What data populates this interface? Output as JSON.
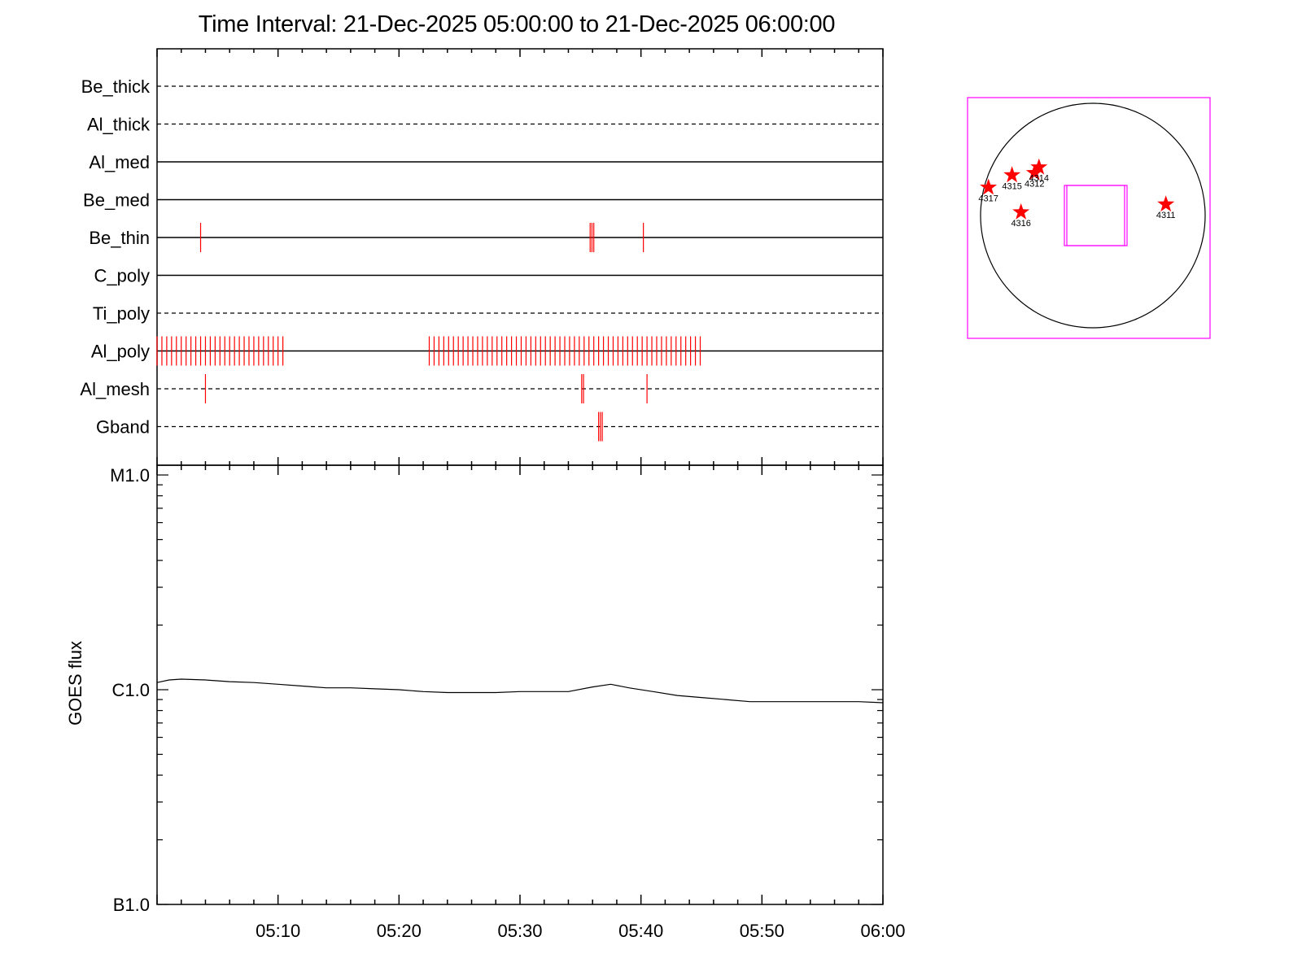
{
  "title": "Time Interval: 21-Dec-2025 05:00:00 to 21-Dec-2025 06:00:00",
  "chart_data": [
    {
      "type": "timeline",
      "x_range": [
        "05:00",
        "06:00"
      ],
      "x_ticks": [
        "05:10",
        "05:20",
        "05:30",
        "05:40",
        "05:50",
        "06:00"
      ],
      "rows": [
        {
          "name": "Be_thick",
          "line": "dashed",
          "marks": []
        },
        {
          "name": "Al_thick",
          "line": "dashed",
          "marks": []
        },
        {
          "name": "Al_med",
          "line": "solid",
          "marks": []
        },
        {
          "name": "Be_med",
          "line": "solid",
          "marks": []
        },
        {
          "name": "Be_thin",
          "line": "solid",
          "marks": [
            3.6,
            35.8,
            35.95,
            36.1,
            40.2
          ]
        },
        {
          "name": "C_poly",
          "line": "solid",
          "marks": []
        },
        {
          "name": "Ti_poly",
          "line": "dashed",
          "marks": []
        },
        {
          "name": "Al_poly",
          "line": "solid",
          "groups": [
            [
              0.0,
              10.5,
              0.4
            ],
            [
              22.5,
              45.0,
              0.4
            ]
          ]
        },
        {
          "name": "Al_mesh",
          "line": "dashed",
          "marks": [
            4.0,
            35.1,
            35.25,
            40.5
          ]
        },
        {
          "name": "Gband",
          "line": "dashed",
          "marks": [
            36.5,
            36.65,
            36.8
          ]
        }
      ],
      "mark_color": "#ff0000"
    },
    {
      "type": "line",
      "ylabel": "GOES flux",
      "y_scale": "log",
      "y_ticks": [
        {
          "label": "M1.0",
          "value": 1e-05
        },
        {
          "label": "C1.0",
          "value": 1e-06
        },
        {
          "label": "B1.0",
          "value": 1e-07
        }
      ],
      "ylim": [
        1e-07,
        1e-05
      ],
      "x_range_min": [
        0,
        60
      ],
      "x_ticks": [
        "05:10",
        "05:20",
        "05:30",
        "05:40",
        "05:50",
        "06:00"
      ],
      "series": [
        {
          "x": [
            0,
            1,
            2,
            4,
            6,
            8,
            10,
            12,
            14,
            16,
            18,
            20,
            22,
            24,
            26,
            28,
            30,
            32,
            34,
            36,
            37.5,
            39,
            41,
            43,
            45,
            47,
            49,
            50,
            52,
            54,
            56,
            58,
            60
          ],
          "y": [
            1.08e-06,
            1.11e-06,
            1.12e-06,
            1.11e-06,
            1.09e-06,
            1.08e-06,
            1.06e-06,
            1.04e-06,
            1.02e-06,
            1.02e-06,
            1.01e-06,
            1e-06,
            9.8e-07,
            9.7e-07,
            9.7e-07,
            9.7e-07,
            9.8e-07,
            9.8e-07,
            9.8e-07,
            1.03e-06,
            1.06e-06,
            1.02e-06,
            9.8e-07,
            9.4e-07,
            9.2e-07,
            9e-07,
            8.8e-07,
            8.8e-07,
            8.8e-07,
            8.8e-07,
            8.8e-07,
            8.8e-07,
            8.7e-07
          ]
        }
      ]
    },
    {
      "type": "scatter",
      "limb_color": "#000000",
      "box_color": "#ff00ff",
      "marker": "star",
      "marker_color": "#ff0000",
      "points": [
        {
          "label": "4317",
          "x": -0.93,
          "y": 0.25
        },
        {
          "label": "4315",
          "x": -0.72,
          "y": 0.36
        },
        {
          "label": "4312",
          "x": -0.52,
          "y": 0.38
        },
        {
          "label": "4314",
          "x": -0.48,
          "y": 0.43
        },
        {
          "label": "4316",
          "x": -0.64,
          "y": 0.03
        },
        {
          "label": "4311",
          "x": 0.65,
          "y": 0.1
        }
      ]
    }
  ]
}
